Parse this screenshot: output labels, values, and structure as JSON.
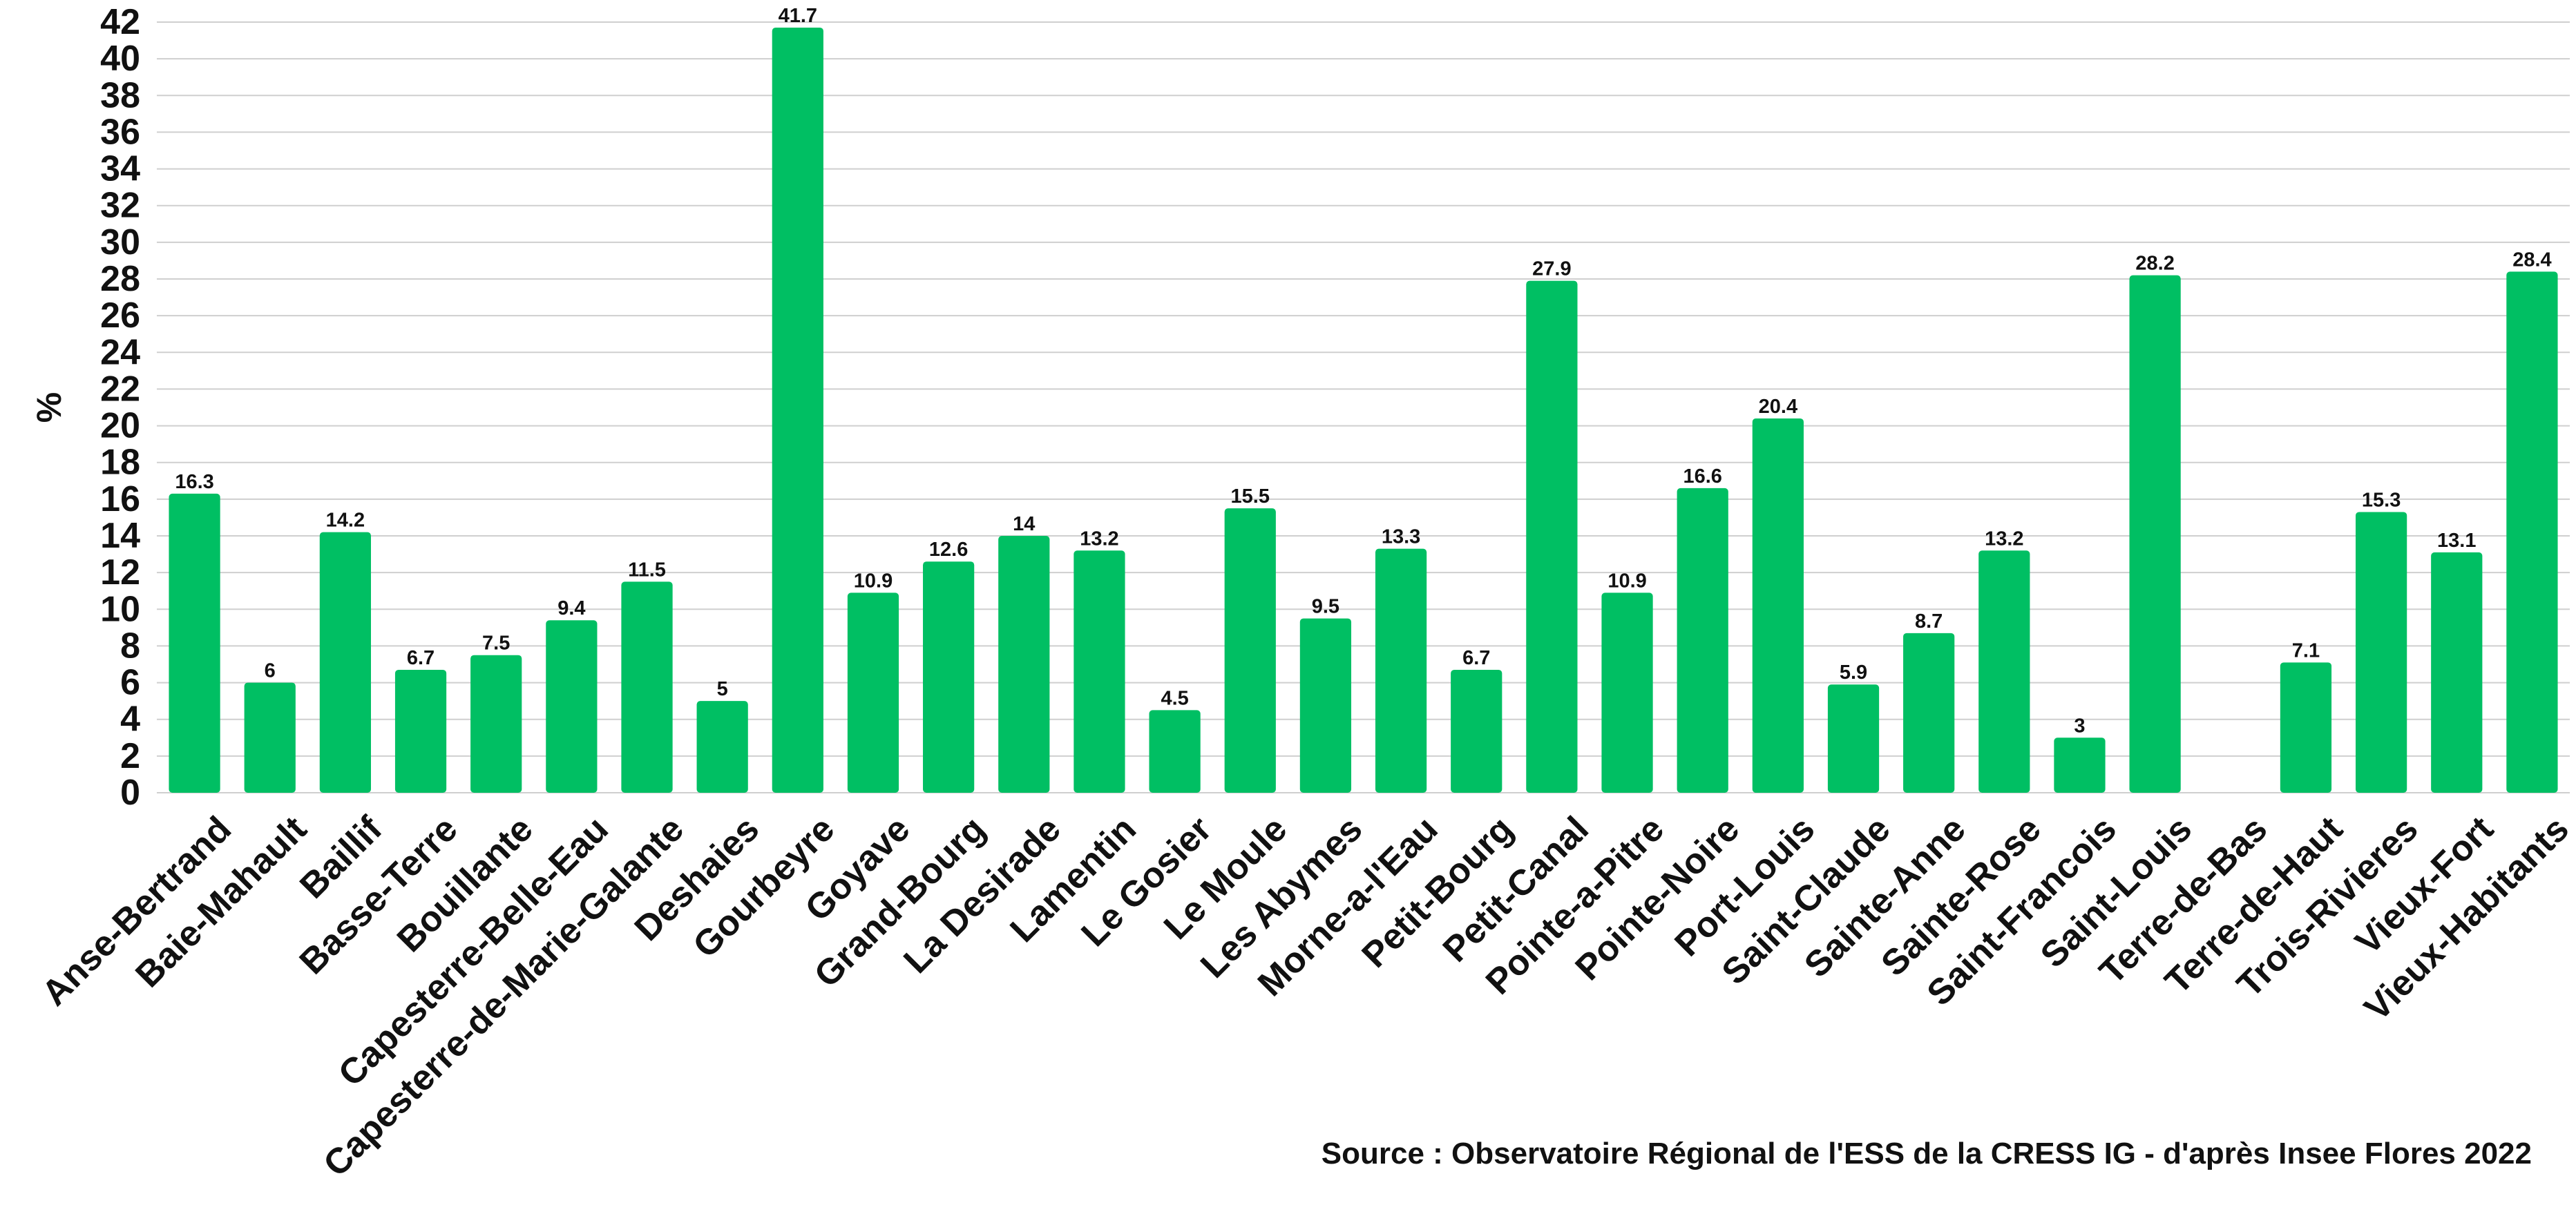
{
  "chart_data": {
    "type": "bar",
    "ylabel": "%",
    "xlabel": "",
    "ylim": [
      0,
      42
    ],
    "ytick_step": 2,
    "grid": true,
    "bar_color": "#00bf63",
    "categories": [
      "Anse-Bertrand",
      "Baie-Mahault",
      "Baillif",
      "Basse-Terre",
      "Bouillante",
      "Capesterre-Belle-Eau",
      "Capesterre-de-Marie-Galante",
      "Deshaies",
      "Gourbeyre",
      "Goyave",
      "Grand-Bourg",
      "La Desirade",
      "Lamentin",
      "Le Gosier",
      "Le Moule",
      "Les Abymes",
      "Morne-a-l'Eau",
      "Petit-Bourg",
      "Petit-Canal",
      "Pointe-a-Pitre",
      "Pointe-Noire",
      "Port-Louis",
      "Saint-Claude",
      "Sainte-Anne",
      "Sainte-Rose",
      "Saint-Francois",
      "Saint-Louis",
      "Terre-de-Bas",
      "Terre-de-Haut",
      "Trois-Rivieres",
      "Vieux-Fort",
      "Vieux-Habitants"
    ],
    "values": [
      16.3,
      6,
      14.2,
      6.7,
      7.5,
      9.4,
      11.5,
      5,
      41.7,
      10.9,
      12.6,
      14,
      13.2,
      4.5,
      15.5,
      9.5,
      13.3,
      6.7,
      27.9,
      10.9,
      16.6,
      20.4,
      5.9,
      8.7,
      13.2,
      3,
      28.2,
      null,
      7.1,
      15.3,
      13.1,
      28.4
    ]
  },
  "source": "Source : Observatoire Régional de l'ESS de la CRESS IG - d'après Insee Flores 2022"
}
